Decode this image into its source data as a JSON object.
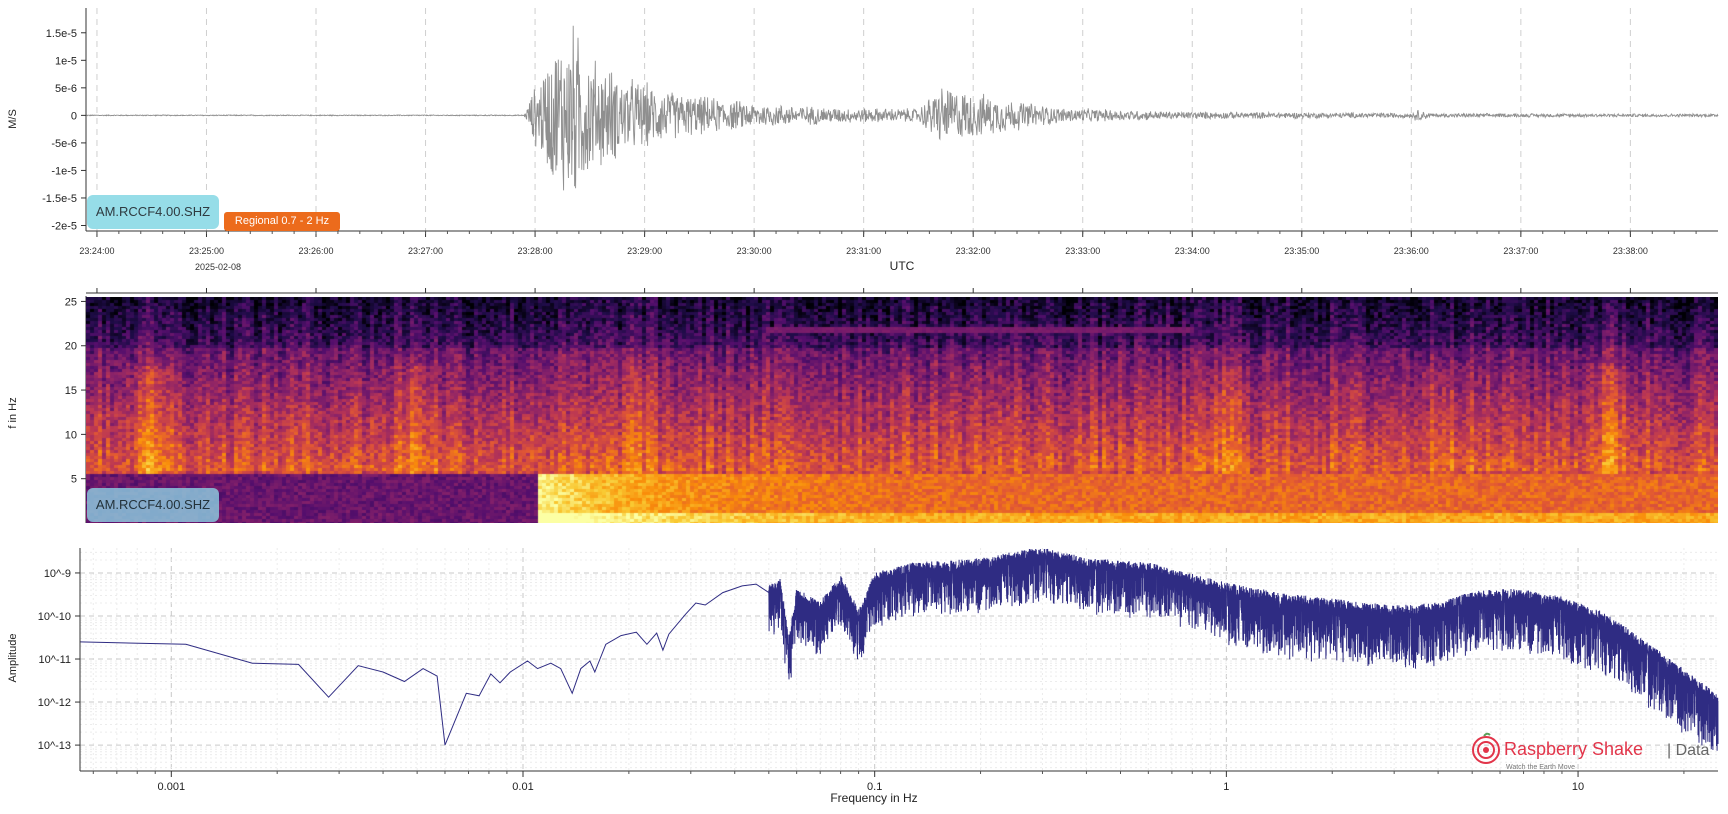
{
  "colors": {
    "waveform": "#8f8f8f",
    "spectrum": "#2f2c83",
    "station_badge": "#96dde8",
    "filter_badge": "#ec6b1c",
    "logo_red": "#e2354a"
  },
  "station_badge": "AM.RCCF4.00.SHZ",
  "spectrogram_badge": "AM.RCCF4.00.SHZ",
  "filter_badge": "Regional 0.7 - 2 Hz",
  "logo": {
    "brand": "Raspberry",
    "brand_accent": "Shake",
    "suffix": "| Data",
    "tagline": "Watch the Earth Move"
  },
  "chart_data": [
    {
      "type": "line",
      "name": "seismogram",
      "ylabel": "M/S",
      "xlabel": "UTC",
      "date_label": "2025-02-08",
      "y_ticks": [
        1.5e-05,
        1e-05,
        5e-06,
        0,
        -5e-06,
        -1e-05,
        -1.5e-05,
        -2e-05
      ],
      "y_tick_labels": [
        "1.5e-5",
        "1e-5",
        "5e-6",
        "0",
        "-5e-6",
        "-1e-5",
        "-1.5e-5",
        "-2e-5"
      ],
      "ylim": [
        -2.1e-05,
        1.95e-05
      ],
      "x_range_minutes": [
        23.9,
        38.8
      ],
      "x_ticks": [
        24,
        25,
        26,
        27,
        28,
        29,
        30,
        31,
        32,
        33,
        34,
        35,
        36,
        37,
        38
      ],
      "x_tick_labels": [
        "23:24:00",
        "23:25:00",
        "23:26:00",
        "23:27:00",
        "23:28:00",
        "23:29:00",
        "23:30:00",
        "23:31:00",
        "23:32:00",
        "23:33:00",
        "23:34:00",
        "23:35:00",
        "23:36:00",
        "23:37:00",
        "23:38:00"
      ],
      "grid": true,
      "envelope": [
        {
          "t": 23.9,
          "a": 1e-07
        },
        {
          "t": 27.9,
          "a": 1e-07
        },
        {
          "t": 28.0,
          "a": 6e-06
        },
        {
          "t": 28.2,
          "a": 1.5e-05
        },
        {
          "t": 28.33,
          "a": 1.9e-05
        },
        {
          "t": 28.5,
          "a": 1.2e-05
        },
        {
          "t": 28.8,
          "a": 8e-06
        },
        {
          "t": 29.3,
          "a": 4.5e-06
        },
        {
          "t": 30.0,
          "a": 2.5e-06
        },
        {
          "t": 30.8,
          "a": 1.5e-06
        },
        {
          "t": 31.5,
          "a": 1.4e-06
        },
        {
          "t": 31.7,
          "a": 6e-06
        },
        {
          "t": 31.9,
          "a": 5e-06
        },
        {
          "t": 32.4,
          "a": 3e-06
        },
        {
          "t": 32.8,
          "a": 1.5e-06
        },
        {
          "t": 33.8,
          "a": 8e-07
        },
        {
          "t": 35.0,
          "a": 6e-07
        },
        {
          "t": 36.0,
          "a": 5e-07
        },
        {
          "t": 36.05,
          "a": 1.2e-06
        },
        {
          "t": 36.2,
          "a": 4e-07
        },
        {
          "t": 38.8,
          "a": 3e-07
        }
      ]
    },
    {
      "type": "heatmap",
      "name": "spectrogram",
      "ylabel": "f in Hz",
      "y_ticks": [
        5,
        10,
        15,
        20,
        25
      ],
      "ylim": [
        0,
        25.5
      ],
      "x_range_minutes": [
        23.9,
        38.8
      ],
      "colormap": "inferno",
      "features": [
        {
          "t_start": 28.0,
          "f_max": 6,
          "intensity": "high",
          "note": "event onset broadband energy"
        },
        {
          "t_start": 30.1,
          "t_end": 34.0,
          "f": 22,
          "intensity": "low",
          "note": "constant tone"
        }
      ]
    },
    {
      "type": "line",
      "name": "amplitude-spectrum",
      "ylabel": "Amplitude",
      "xlabel": "Frequency in Hz",
      "x_scale": "log",
      "y_scale": "log",
      "xlim": [
        0.00055,
        25
      ],
      "ylim": [
        2.5e-14,
        3.8e-09
      ],
      "x_ticks": [
        0.001,
        0.01,
        0.1,
        1,
        10
      ],
      "x_tick_labels": [
        "0.001",
        "0.01",
        "0.1",
        "1",
        "10"
      ],
      "y_ticks": [
        1e-09,
        1e-10,
        1e-11,
        1e-12,
        1e-13
      ],
      "y_tick_labels": [
        "10^-9",
        "10^-10",
        "10^-11",
        "10^-12",
        "10^-13"
      ],
      "grid": true,
      "points": [
        [
          0.00055,
          2.5e-11
        ],
        [
          0.0011,
          2.2e-11
        ],
        [
          0.0017,
          8e-12
        ],
        [
          0.0023,
          7.5e-12
        ],
        [
          0.0028,
          1.3e-12
        ],
        [
          0.0034,
          7e-12
        ],
        [
          0.004,
          5e-12
        ],
        [
          0.0046,
          3e-12
        ],
        [
          0.0052,
          6e-12
        ],
        [
          0.0057,
          4e-12
        ],
        [
          0.006,
          1e-13
        ],
        [
          0.0069,
          1.6e-12
        ],
        [
          0.0075,
          1.4e-12
        ],
        [
          0.0081,
          4.5e-12
        ],
        [
          0.0086,
          2.8e-12
        ],
        [
          0.0092,
          5e-12
        ],
        [
          0.0103,
          9e-12
        ],
        [
          0.011,
          6e-12
        ],
        [
          0.012,
          8e-12
        ],
        [
          0.0128,
          6e-12
        ],
        [
          0.0138,
          1.6e-12
        ],
        [
          0.0146,
          6e-12
        ],
        [
          0.0155,
          9e-12
        ],
        [
          0.016,
          5e-12
        ],
        [
          0.0172,
          2.2e-11
        ],
        [
          0.019,
          3.5e-11
        ],
        [
          0.021,
          4.2e-11
        ],
        [
          0.0225,
          2.2e-11
        ],
        [
          0.024,
          4e-11
        ],
        [
          0.025,
          1.6e-11
        ],
        [
          0.026,
          3.8e-11
        ],
        [
          0.029,
          1.1e-10
        ],
        [
          0.031,
          2e-10
        ],
        [
          0.033,
          1.8e-10
        ],
        [
          0.037,
          3.5e-10
        ],
        [
          0.042,
          5e-10
        ],
        [
          0.046,
          5.5e-10
        ],
        [
          0.05,
          3.5e-10
        ],
        [
          0.054,
          5e-10
        ],
        [
          0.057,
          2e-11
        ],
        [
          0.06,
          3e-10
        ],
        [
          0.07,
          1.5e-10
        ],
        [
          0.08,
          6e-10
        ],
        [
          0.09,
          1e-10
        ],
        [
          0.1,
          7e-10
        ],
        [
          0.13,
          1.2e-09
        ],
        [
          0.2,
          1.5e-09
        ],
        [
          0.3,
          2.8e-09
        ],
        [
          0.4,
          1.5e-09
        ],
        [
          0.6,
          1.2e-09
        ],
        [
          1.0,
          4e-10
        ],
        [
          1.5,
          2.2e-10
        ],
        [
          2.0,
          1.7e-10
        ],
        [
          3.0,
          1.2e-10
        ],
        [
          4.0,
          1.4e-10
        ],
        [
          5.0,
          2.5e-10
        ],
        [
          6.0,
          3e-10
        ],
        [
          7.0,
          2.8e-10
        ],
        [
          9.0,
          1.9e-10
        ],
        [
          12.0,
          8e-11
        ],
        [
          16.0,
          1.5e-11
        ],
        [
          20.0,
          4e-12
        ],
        [
          25.0,
          1e-12
        ]
      ]
    }
  ]
}
